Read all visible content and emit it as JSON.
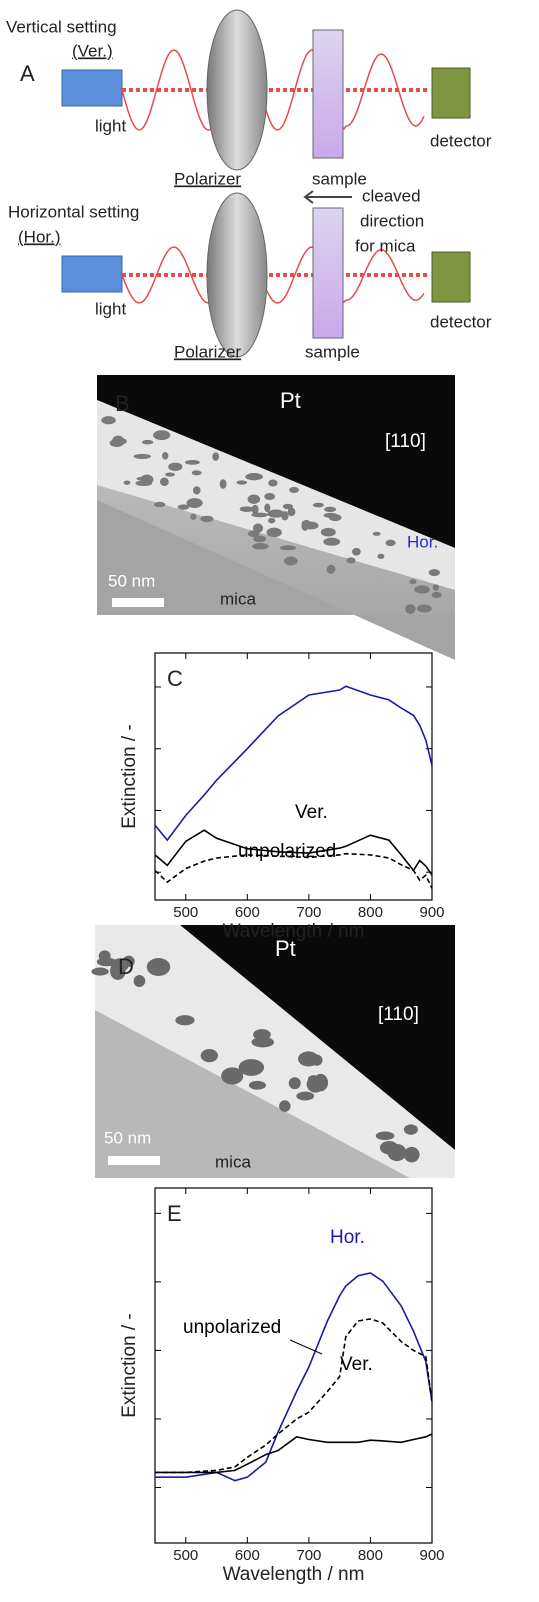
{
  "panel_a": {
    "label": "A",
    "top": {
      "setting": "Vertical setting",
      "abbr": "(Ver.)",
      "light": "light",
      "polarizer": "Polarizer",
      "sample": "sample",
      "detector": "detector"
    },
    "bottom": {
      "setting": "Horizontal setting",
      "abbr": "(Hor.)",
      "light": "light",
      "polarizer": "Polarizer",
      "sample": "sample",
      "detector": "detector"
    },
    "note": [
      "cleaved",
      "direction",
      "for mica"
    ]
  },
  "panel_b": {
    "label": "B",
    "pt": "Pt",
    "direction": "[110]",
    "setting": "Hor.",
    "scale": "50 nm",
    "substrate": "mica"
  },
  "panel_d": {
    "label": "D",
    "pt": "Pt",
    "direction": "[110]",
    "scale": "50 nm",
    "substrate": "mica"
  },
  "chart_data": [
    {
      "type": "line",
      "label": "C",
      "xlabel": "Wavelength / nm",
      "ylabel": "Extinction / -",
      "x": [
        450,
        470,
        500,
        530,
        550,
        600,
        650,
        700,
        750,
        760,
        800,
        830,
        850,
        870,
        880,
        890,
        900
      ],
      "series": [
        {
          "color": "#1a1aa6",
          "dash": false,
          "values": [
            0.76,
            0.52,
            0.92,
            1.25,
            1.49,
            2.0,
            2.53,
            2.87,
            2.95,
            3.01,
            2.87,
            2.79,
            2.66,
            2.54,
            2.38,
            2.14,
            1.73
          ]
        },
        {
          "name": "Ver.",
          "color": "#000000",
          "dash": false,
          "values": [
            0.28,
            0.11,
            0.5,
            0.68,
            0.55,
            0.38,
            0.33,
            0.31,
            0.39,
            0.42,
            0.6,
            0.52,
            0.28,
            0.03,
            0.19,
            0.1,
            -0.05
          ]
        },
        {
          "name": "unpolarized",
          "color": "#000000",
          "dash": true,
          "values": [
            0.03,
            -0.16,
            0.06,
            0.18,
            0.23,
            0.28,
            0.26,
            0.24,
            0.28,
            0.3,
            0.28,
            0.23,
            0.12,
            0.03,
            -0.13,
            -0.05,
            -0.26
          ]
        }
      ],
      "xlim": [
        450,
        900
      ],
      "xticks": [
        500,
        600,
        700,
        800,
        900
      ],
      "ylim": [
        -0.45,
        3.55
      ],
      "yticks": [
        0,
        1,
        2,
        3
      ]
    },
    {
      "type": "line",
      "label": "E",
      "xlabel": "Wavelength / nm",
      "ylabel": "Extinction / -",
      "x": [
        450,
        500,
        550,
        580,
        600,
        630,
        650,
        680,
        700,
        730,
        750,
        760,
        780,
        800,
        820,
        850,
        870,
        890,
        900
      ],
      "series": [
        {
          "name": "Hor.",
          "color": "#1a1aa6",
          "dash": false,
          "values": [
            0.15,
            0.15,
            0.22,
            0.1,
            0.15,
            0.37,
            0.81,
            1.4,
            1.76,
            2.43,
            2.8,
            2.94,
            3.09,
            3.13,
            3.01,
            2.65,
            2.28,
            1.84,
            1.25
          ]
        },
        {
          "name": "Ver.",
          "color": "#000000",
          "dash": false,
          "values": [
            0.22,
            0.22,
            0.22,
            0.25,
            0.34,
            0.48,
            0.54,
            0.74,
            0.7,
            0.66,
            0.66,
            0.66,
            0.66,
            0.69,
            0.68,
            0.66,
            0.7,
            0.74,
            0.78
          ]
        },
        {
          "name": "unpolarized",
          "color": "#000000",
          "dash": true,
          "values": [
            0.22,
            0.22,
            0.25,
            0.3,
            0.44,
            0.62,
            0.78,
            1.0,
            1.1,
            1.4,
            1.62,
            2.2,
            2.43,
            2.46,
            2.4,
            2.13,
            2.0,
            1.91,
            1.25
          ]
        }
      ],
      "xlim": [
        450,
        900
      ],
      "xticks": [
        500,
        600,
        700,
        800,
        900
      ],
      "ylim": [
        -0.81,
        4.37
      ],
      "yticks": [
        0,
        1,
        2,
        3,
        4
      ]
    }
  ]
}
